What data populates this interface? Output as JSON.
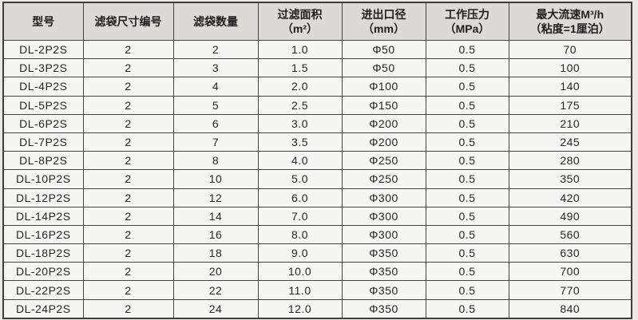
{
  "colors": {
    "page_background": "#e9e8e5",
    "header_background": "#dbdad7",
    "cell_background": "#f5f5f2",
    "border": "#454545",
    "text": "#262626"
  },
  "table": {
    "columns": [
      {
        "id": "model",
        "label": "型号"
      },
      {
        "id": "bag_size_number",
        "label": "滤袋尺寸编号"
      },
      {
        "id": "bag_quantity",
        "label": "滤袋数量"
      },
      {
        "id": "filter_area",
        "label": "过滤面积\n（m²）"
      },
      {
        "id": "inlet_outlet_diameter",
        "label": "进出口径\n（mm）"
      },
      {
        "id": "working_pressure",
        "label": "工作压力\n（MPa）"
      },
      {
        "id": "max_flow_rate",
        "label": "最大流速M³/h\n（粘度=1厘泊）"
      }
    ],
    "rows": [
      [
        "DL-2P2S",
        "2",
        "2",
        "1.0",
        "Φ50",
        "0.5",
        "70"
      ],
      [
        "DL-3P2S",
        "2",
        "3",
        "1.5",
        "Φ50",
        "0.5",
        "100"
      ],
      [
        "DL-4P2S",
        "2",
        "4",
        "2.0",
        "Φ100",
        "0.5",
        "140"
      ],
      [
        "DL-5P2S",
        "2",
        "5",
        "2.5",
        "Φ150",
        "0.5",
        "175"
      ],
      [
        "DL-6P2S",
        "2",
        "6",
        "3.0",
        "Φ200",
        "0.5",
        "210"
      ],
      [
        "DL-7P2S",
        "2",
        "7",
        "3.5",
        "Φ200",
        "0.5",
        "245"
      ],
      [
        "DL-8P2S",
        "2",
        "8",
        "4.0",
        "Φ250",
        "0.5",
        "280"
      ],
      [
        "DL-10P2S",
        "2",
        "10",
        "5.0",
        "Φ250",
        "0.5",
        "350"
      ],
      [
        "DL-12P2S",
        "2",
        "12",
        "6.0",
        "Φ300",
        "0.5",
        "420"
      ],
      [
        "DL-14P2S",
        "2",
        "14",
        "7.0",
        "Φ300",
        "0.5",
        "490"
      ],
      [
        "DL-16P2S",
        "2",
        "16",
        "8.0",
        "Φ300",
        "0.5",
        "560"
      ],
      [
        "DL-18P2S",
        "2",
        "18",
        "9.0",
        "Φ350",
        "0.5",
        "630"
      ],
      [
        "DL-20P2S",
        "2",
        "20",
        "10.0",
        "Φ350",
        "0.5",
        "700"
      ],
      [
        "DL-22P2S",
        "2",
        "22",
        "11.0",
        "Φ350",
        "0.5",
        "770"
      ],
      [
        "DL-24P2S",
        "2",
        "24",
        "12.0",
        "Φ350",
        "0.5",
        "840"
      ]
    ]
  },
  "chart_data": {
    "type": "table",
    "title": "",
    "columns": [
      "型号",
      "滤袋尺寸编号",
      "滤袋数量",
      "过滤面积（m²）",
      "进出口径（mm）",
      "工作压力（MPa）",
      "最大流速M³/h（粘度=1厘泊）"
    ],
    "rows": [
      [
        "DL-2P2S",
        2,
        2,
        1.0,
        "Φ50",
        0.5,
        70
      ],
      [
        "DL-3P2S",
        2,
        3,
        1.5,
        "Φ50",
        0.5,
        100
      ],
      [
        "DL-4P2S",
        2,
        4,
        2.0,
        "Φ100",
        0.5,
        140
      ],
      [
        "DL-5P2S",
        2,
        5,
        2.5,
        "Φ150",
        0.5,
        175
      ],
      [
        "DL-6P2S",
        2,
        6,
        3.0,
        "Φ200",
        0.5,
        210
      ],
      [
        "DL-7P2S",
        2,
        7,
        3.5,
        "Φ200",
        0.5,
        245
      ],
      [
        "DL-8P2S",
        2,
        8,
        4.0,
        "Φ250",
        0.5,
        280
      ],
      [
        "DL-10P2S",
        2,
        10,
        5.0,
        "Φ250",
        0.5,
        350
      ],
      [
        "DL-12P2S",
        2,
        12,
        6.0,
        "Φ300",
        0.5,
        420
      ],
      [
        "DL-14P2S",
        2,
        14,
        7.0,
        "Φ300",
        0.5,
        490
      ],
      [
        "DL-16P2S",
        2,
        16,
        8.0,
        "Φ300",
        0.5,
        560
      ],
      [
        "DL-18P2S",
        2,
        18,
        9.0,
        "Φ350",
        0.5,
        630
      ],
      [
        "DL-20P2S",
        2,
        20,
        10.0,
        "Φ350",
        0.5,
        700
      ],
      [
        "DL-22P2S",
        2,
        22,
        11.0,
        "Φ350",
        0.5,
        770
      ],
      [
        "DL-24P2S",
        2,
        24,
        12.0,
        "Φ350",
        0.5,
        840
      ]
    ]
  }
}
